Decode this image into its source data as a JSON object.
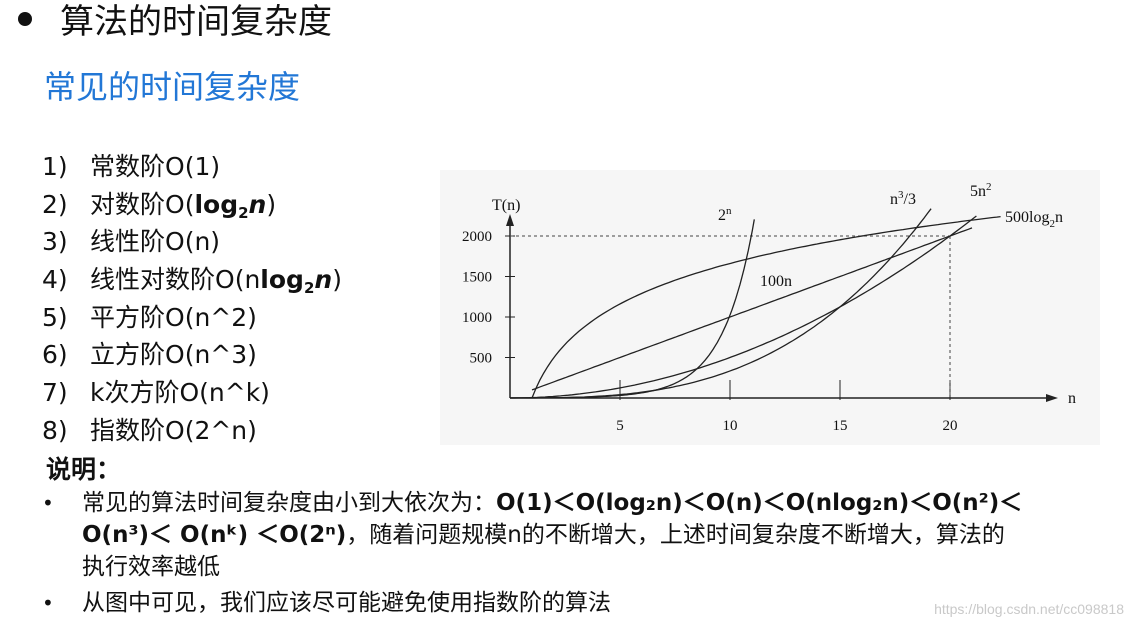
{
  "header": {
    "title": "算法的时间复杂度",
    "subtitle": "常见的时间复杂度"
  },
  "list": [
    {
      "num": "1)",
      "name": "常数阶",
      "prefix": "O(1)",
      "bold": "",
      "sub": "",
      "tail": "",
      "close": ""
    },
    {
      "num": "2)",
      "name": "对数阶",
      "prefix": "O(",
      "bold": "log",
      "sub": "2",
      "tail": "n",
      "close": ")"
    },
    {
      "num": "3)",
      "name": "线性阶",
      "prefix": "O(n)",
      "bold": "",
      "sub": "",
      "tail": "",
      "close": ""
    },
    {
      "num": "4)",
      "name": "线性对数阶",
      "prefix": "O(n",
      "bold": "log",
      "sub": "2",
      "tail": "n",
      "close": ")"
    },
    {
      "num": "5)",
      "name": "平方阶",
      "prefix": "O(n^2)",
      "bold": "",
      "sub": "",
      "tail": "",
      "close": ""
    },
    {
      "num": "6)",
      "name": "立方阶",
      "prefix": "O(n^3)",
      "bold": "",
      "sub": "",
      "tail": "",
      "close": ""
    },
    {
      "num": "7)",
      "name": "k次方阶",
      "prefix": "O(n^k)",
      "bold": "",
      "sub": "",
      "tail": "",
      "close": ""
    },
    {
      "num": "8)",
      "name": "指数阶",
      "prefix": "O(2^n)",
      "bold": "",
      "sub": "",
      "tail": "",
      "close": ""
    }
  ],
  "chart_data": {
    "type": "line",
    "ylabel": "T(n)",
    "xlabel": "n",
    "xlim": [
      0,
      25
    ],
    "ylim": [
      0,
      2300
    ],
    "xticks": [
      "5",
      "10",
      "15",
      "20"
    ],
    "yticks": [
      "500",
      "1000",
      "1500",
      "2000"
    ],
    "series": [
      {
        "name": "2ⁿ",
        "label": "2n",
        "expr": "2^n"
      },
      {
        "name": "n³/3",
        "label": "n3/3",
        "expr": "n^3/3"
      },
      {
        "name": "5n²",
        "label": "5n2",
        "expr": "5n^2"
      },
      {
        "name": "500log₂n",
        "label": "500log2n",
        "expr": "500*log2(n)"
      },
      {
        "name": "100n",
        "label": "100n",
        "expr": "100n"
      }
    ],
    "reference": {
      "x": 20,
      "y": 2000,
      "style": "dashed"
    }
  },
  "explain": {
    "title": "说明：",
    "line1_prefix": "常见的算法时间复杂度由小到大依次为：",
    "line1_order": "O(1)＜O(log₂n)＜O(n)＜O(nlog₂n)＜O(n²)＜",
    "line2_order": "O(n³)＜ O(nᵏ) ＜O(2ⁿ)",
    "line2_suffix": "，随着问题规模n的不断增大，上述时间复杂度不断增大，算法的",
    "line3": "执行效率越低",
    "line4": "从图中可见，我们应该尽可能避免使用指数阶的算法",
    "bullet": "•"
  },
  "watermark": "https://blog.csdn.net/cc098818"
}
